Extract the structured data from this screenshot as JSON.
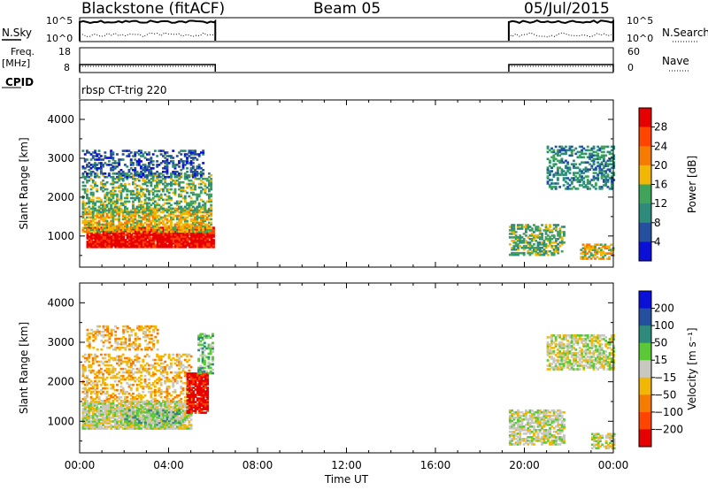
{
  "header": {
    "station": "Blackstone (fitACF)",
    "beam": "Beam 05",
    "date": "05/Jul/2015"
  },
  "top_panels": {
    "nsky_label": "N.Sky",
    "nsearch_label": "N.Search",
    "ns_left_ticks": [
      "10^5",
      "10^0"
    ],
    "ns_right_ticks": [
      "10^5",
      "10^0"
    ],
    "freq_label_line1": "Freq.",
    "freq_label_line2": "[MHz]",
    "freq_ticks": [
      "18",
      "8"
    ],
    "nave_label": "Nave",
    "nave_ticks": [
      "60",
      "0"
    ],
    "cpid_label": "CPID",
    "cpid_text": "rbsp CT-trig 220"
  },
  "chart_data": [
    {
      "type": "heatmap",
      "name": "power",
      "ylabel": "Slant Range [km]",
      "xlabel": "Time UT",
      "x_ticks": [
        "00:00",
        "04:00",
        "08:00",
        "12:00",
        "16:00",
        "20:00",
        "00:00"
      ],
      "x_range_hours": [
        0,
        24
      ],
      "y_ticks": [
        1000,
        2000,
        3000,
        4000
      ],
      "ylim": [
        200,
        4500
      ],
      "colorbar": {
        "label": "Power [dB]",
        "ticks": [
          "28",
          "24",
          "20",
          "16",
          "12",
          "8",
          "4"
        ],
        "colors": [
          "#e60000",
          "#ff4500",
          "#f57c00",
          "#f2b705",
          "#3fa35a",
          "#2e8a7a",
          "#2550a0",
          "#0a10d8"
        ]
      },
      "data_intervals_hours": [
        [
          0,
          6.1
        ],
        [
          19.3,
          24
        ]
      ],
      "regions": [
        {
          "t0": 0.3,
          "t1": 6.0,
          "r0": 700,
          "r1": 1200,
          "level": 7,
          "density": 0.95
        },
        {
          "t0": 0.1,
          "t1": 5.9,
          "r0": 1100,
          "r1": 1700,
          "level": 4,
          "density": 0.7
        },
        {
          "t0": 0.1,
          "t1": 5.9,
          "r0": 1600,
          "r1": 2600,
          "level": 3,
          "density": 0.45
        },
        {
          "t0": 0.1,
          "t1": 5.5,
          "r0": 2500,
          "r1": 3200,
          "level": 1,
          "density": 0.35
        },
        {
          "t0": 19.3,
          "t1": 21.8,
          "r0": 500,
          "r1": 1300,
          "level": 3,
          "density": 0.55
        },
        {
          "t0": 21.0,
          "t1": 24.0,
          "r0": 2200,
          "r1": 3300,
          "level": 2,
          "density": 0.45
        },
        {
          "t0": 22.5,
          "t1": 24.0,
          "r0": 400,
          "r1": 800,
          "level": 4,
          "density": 0.6
        }
      ]
    },
    {
      "type": "heatmap",
      "name": "velocity",
      "ylabel": "Slant Range [km]",
      "xlabel": "Time UT",
      "x_ticks": [
        "00:00",
        "04:00",
        "08:00",
        "12:00",
        "16:00",
        "20:00",
        "00:00"
      ],
      "x_range_hours": [
        0,
        24
      ],
      "y_ticks": [
        1000,
        2000,
        3000,
        4000
      ],
      "ylim": [
        200,
        4500
      ],
      "colorbar": {
        "label": "Velocity [m s⁻¹]",
        "ticks": [
          "200",
          "100",
          "50",
          "15",
          "−15",
          "−50",
          "−100",
          "−200"
        ],
        "colors": [
          "#0a10d8",
          "#2550a0",
          "#2e8a7a",
          "#5ac837",
          "#c8c8c0",
          "#f2b705",
          "#f57c00",
          "#ff4500",
          "#e60000"
        ]
      },
      "data_intervals_hours": [
        [
          0,
          6.1
        ],
        [
          19.3,
          24
        ]
      ],
      "regions": [
        {
          "t0": 0.1,
          "t1": 5.0,
          "r0": 800,
          "r1": 1500,
          "level": 4,
          "density": 0.85
        },
        {
          "t0": 0.1,
          "t1": 5.0,
          "r0": 1500,
          "r1": 2700,
          "level": 5,
          "density": 0.4
        },
        {
          "t0": 0.3,
          "t1": 3.5,
          "r0": 2800,
          "r1": 3400,
          "level": 5,
          "density": 0.4
        },
        {
          "t0": 2.0,
          "t1": 4.5,
          "r0": 900,
          "r1": 1300,
          "level": 3,
          "density": 0.5
        },
        {
          "t0": 4.8,
          "t1": 5.7,
          "r0": 1200,
          "r1": 2200,
          "level": 8,
          "density": 0.85
        },
        {
          "t0": 5.3,
          "t1": 6.0,
          "r0": 2200,
          "r1": 3200,
          "level": 3,
          "density": 0.5
        },
        {
          "t0": 19.3,
          "t1": 21.8,
          "r0": 400,
          "r1": 1300,
          "level": 4,
          "density": 0.65
        },
        {
          "t0": 21.0,
          "t1": 24.0,
          "r0": 2300,
          "r1": 3200,
          "level": 4,
          "density": 0.6
        },
        {
          "t0": 23.0,
          "t1": 24.0,
          "r0": 300,
          "r1": 700,
          "level": 4,
          "density": 0.6
        }
      ]
    }
  ]
}
